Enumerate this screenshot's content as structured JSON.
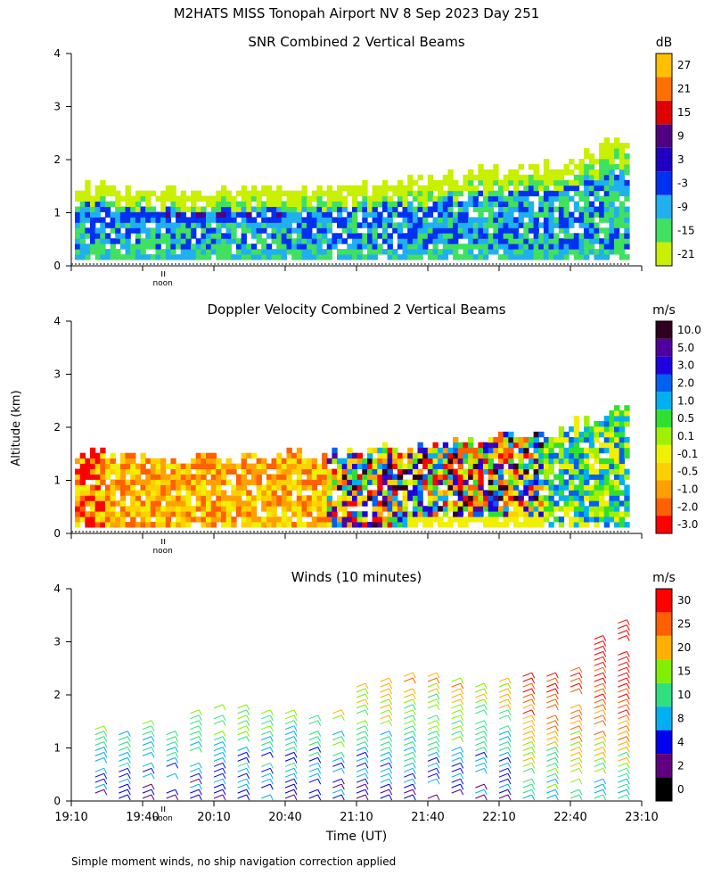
{
  "chart_data": {
    "type": "heatmap",
    "title": "M2HATS MISS Tonopah Airport NV   8 Sep 2023 Day 251",
    "xlabel": "Time (UT)",
    "ylabel": "Altitude (km)",
    "x_range": [
      "19:10",
      "23:10"
    ],
    "x_ticks": [
      "19:10",
      "19:40",
      "20:10",
      "20:40",
      "21:10",
      "21:40",
      "22:10",
      "22:40",
      "23:10"
    ],
    "ylim": [
      0,
      4
    ],
    "y_ticks": [
      "0",
      "1",
      "2",
      "3",
      "4"
    ],
    "noon_label": "noon",
    "footnote": "Simple moment winds, no ship navigation correction applied",
    "panels": [
      {
        "title": "SNR Combined 2 Vertical Beams",
        "units": "dB",
        "colorbar_labels": [
          "-21",
          "-15",
          "-9",
          "-3",
          "3",
          "9",
          "15",
          "21",
          "27"
        ],
        "colorbar_colors": [
          "#c8f000",
          "#40e060",
          "#20b0f0",
          "#0030f0",
          "#2000c0",
          "#500080",
          "#e00000",
          "#ff7000",
          "#ffc000"
        ],
        "boundary_layer_top_km": [
          1.3,
          1.2,
          1.2,
          1.25,
          1.3,
          1.4,
          1.6,
          1.7,
          2.2
        ]
      },
      {
        "title": "Doppler Velocity Combined 2 Vertical Beams",
        "units": "m/s",
        "colorbar_labels": [
          "10.0",
          "5.0",
          "3.0",
          "2.0",
          "1.0",
          "0.5",
          "0.1",
          "-0.1",
          "-0.5",
          "-1.0",
          "-2.0",
          "-3.0"
        ],
        "colorbar_colors": [
          "#300020",
          "#5000a0",
          "#2000e0",
          "#0060f0",
          "#00b0f0",
          "#30e030",
          "#a0f000",
          "#f0f000",
          "#ffd000",
          "#ffa000",
          "#ff6000",
          "#ff0000"
        ]
      },
      {
        "title": "Winds (10 minutes)",
        "units": "m/s",
        "colorbar_labels": [
          "30",
          "25",
          "20",
          "15",
          "10",
          "8",
          "4",
          "2",
          "0"
        ],
        "colorbar_colors": [
          "#ff0000",
          "#ff6000",
          "#ffb000",
          "#80f000",
          "#30e080",
          "#00b0f0",
          "#0000f0",
          "#600080",
          "#000000"
        ],
        "profile_times": [
          "19:20",
          "19:30",
          "19:40",
          "19:50",
          "20:00",
          "20:10",
          "20:20",
          "20:30",
          "20:40",
          "20:50",
          "21:00",
          "21:10",
          "21:20",
          "21:30",
          "21:40",
          "21:50",
          "22:00",
          "22:10",
          "22:20",
          "22:30",
          "22:40",
          "22:50",
          "23:00"
        ],
        "profile_top_km": [
          1.4,
          1.3,
          1.5,
          1.3,
          1.7,
          1.8,
          1.8,
          1.7,
          1.7,
          1.6,
          1.7,
          2.2,
          2.3,
          2.4,
          2.4,
          2.3,
          2.2,
          2.3,
          2.4,
          2.4,
          2.5,
          3.1,
          3.4
        ]
      }
    ]
  }
}
